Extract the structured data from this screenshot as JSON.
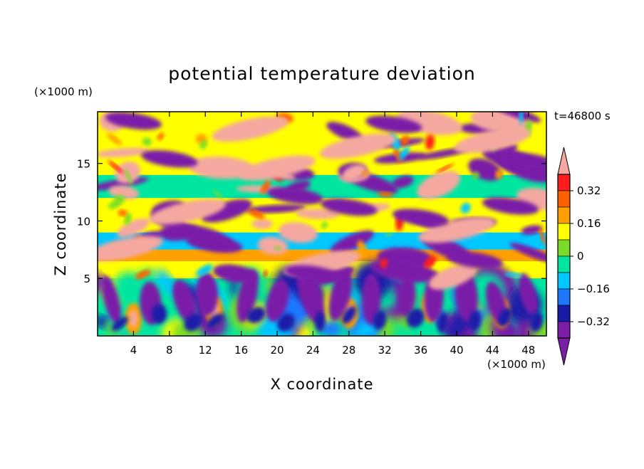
{
  "chart_data": {
    "type": "heatmap",
    "title": "potential temperature deviation",
    "xlabel": "X coordinate",
    "ylabel": "Z coordinate",
    "x_unit_label": "(×1000 m)",
    "y_unit_label": "(×1000 m)",
    "time_label": "t=46800 s",
    "xlim": [
      0,
      50
    ],
    "ylim": [
      0,
      19.5
    ],
    "xticks": [
      4,
      8,
      12,
      16,
      20,
      24,
      28,
      32,
      36,
      40,
      44,
      48
    ],
    "yticks": [
      5,
      10,
      15
    ],
    "colorbar": {
      "levels": [
        -0.4,
        -0.32,
        -0.24,
        -0.16,
        -0.08,
        0,
        0.08,
        0.16,
        0.24,
        0.32,
        0.4
      ],
      "labeled_levels": [
        0.32,
        0.16,
        0,
        -0.16,
        -0.32
      ],
      "labels": [
        "0.32",
        "0.16",
        "0",
        "−0.16",
        "−0.32"
      ],
      "extend": "both",
      "colors": [
        "#7a1ea8",
        "#1a1aa8",
        "#1e78ff",
        "#00c8ff",
        "#00e6a0",
        "#78dc28",
        "#ffff00",
        "#ffa000",
        "#ff6000",
        "#ff1e1e",
        "#f4a8a0"
      ]
    },
    "bands": [
      {
        "z_range": [
          0,
          5
        ],
        "description": "large convective eddies, colors from deep purple to pink"
      },
      {
        "z_range": [
          5,
          19.5
        ],
        "description": "layered structure with alternating pink (warm) and purple (cold) patches; green/cyan bands near z=8 and z=12"
      }
    ]
  }
}
